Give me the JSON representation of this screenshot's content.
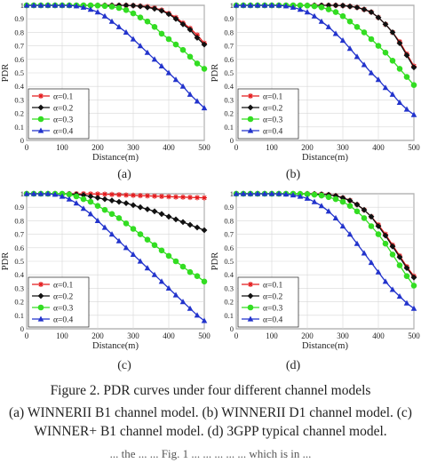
{
  "figure_caption": "Figure 2. PDR curves under four different channel models",
  "caption_lines": [
    "(a) WINNERII B1 channel model. (b) WINNERII D1 channel model. (c)",
    "WINNER+ B1 channel model. (d) 3GPP typical channel model."
  ],
  "partial_text": "... the ... ... Fig. 1 ... ... ... ... ... which is in ...",
  "colors": {
    "a1": "#e41a1c",
    "a2": "#111111",
    "a3": "#33dd22",
    "a4": "#2233cc"
  },
  "chart_data": [
    {
      "type": "line",
      "panel_label": "(a)",
      "xlabel": "Distance(m)",
      "ylabel": "PDR",
      "xlim": [
        0,
        500
      ],
      "ylim": [
        0,
        1
      ],
      "xticks": [
        "0",
        "100",
        "200",
        "300",
        "400",
        "500"
      ],
      "yticks": [
        "0",
        "0.1",
        "0.2",
        "0.3",
        "0.4",
        "0.5",
        "0.6",
        "0.7",
        "0.8",
        "0.9",
        "1"
      ],
      "grid": true,
      "legend_position": "bottom-left",
      "x": [
        0,
        20,
        40,
        60,
        80,
        100,
        120,
        140,
        160,
        180,
        200,
        220,
        240,
        260,
        280,
        300,
        320,
        340,
        360,
        380,
        400,
        420,
        440,
        460,
        480,
        500
      ],
      "series": [
        {
          "name": "α=0.1",
          "marker": "star",
          "color_key": "a1",
          "values": [
            1,
            1,
            1,
            1,
            1,
            1,
            1,
            1,
            1,
            1,
            1,
            1,
            1,
            1,
            1,
            0.999,
            0.995,
            0.99,
            0.98,
            0.965,
            0.94,
            0.91,
            0.87,
            0.83,
            0.78,
            0.72
          ]
        },
        {
          "name": "α=0.2",
          "marker": "diamond",
          "color_key": "a2",
          "values": [
            1,
            1,
            1,
            1,
            1,
            1,
            1,
            1,
            1,
            1,
            1,
            1,
            1,
            1,
            1,
            0.998,
            0.993,
            0.985,
            0.975,
            0.96,
            0.935,
            0.9,
            0.86,
            0.82,
            0.76,
            0.71
          ]
        },
        {
          "name": "α=0.3",
          "marker": "circle",
          "color_key": "a3",
          "values": [
            1,
            1,
            1,
            1,
            1,
            1,
            1,
            1,
            1,
            1,
            0.998,
            0.995,
            0.99,
            0.98,
            0.965,
            0.94,
            0.91,
            0.88,
            0.84,
            0.79,
            0.75,
            0.71,
            0.67,
            0.62,
            0.57,
            0.53
          ]
        },
        {
          "name": "α=0.4",
          "marker": "triangle",
          "color_key": "a4",
          "values": [
            1,
            1,
            1,
            1,
            1,
            1,
            1,
            0.995,
            0.985,
            0.97,
            0.95,
            0.92,
            0.88,
            0.84,
            0.8,
            0.75,
            0.7,
            0.65,
            0.6,
            0.55,
            0.5,
            0.45,
            0.4,
            0.34,
            0.29,
            0.24
          ]
        }
      ]
    },
    {
      "type": "line",
      "panel_label": "(b)",
      "xlabel": "Distance(m)",
      "ylabel": "PDR",
      "xlim": [
        0,
        500
      ],
      "ylim": [
        0,
        1
      ],
      "xticks": [
        "0",
        "100",
        "200",
        "300",
        "400",
        "500"
      ],
      "yticks": [
        "0",
        "0.1",
        "0.2",
        "0.3",
        "0.4",
        "0.5",
        "0.6",
        "0.7",
        "0.8",
        "0.9",
        "1"
      ],
      "grid": true,
      "legend_position": "bottom-left",
      "x": [
        0,
        20,
        40,
        60,
        80,
        100,
        120,
        140,
        160,
        180,
        200,
        220,
        240,
        260,
        280,
        300,
        320,
        340,
        360,
        380,
        400,
        420,
        440,
        460,
        480,
        500
      ],
      "series": [
        {
          "name": "α=0.1",
          "marker": "star",
          "color_key": "a1",
          "values": [
            1,
            1,
            1,
            1,
            1,
            1,
            1,
            1,
            1,
            1,
            1,
            1,
            1,
            1,
            1,
            0.998,
            0.993,
            0.985,
            0.97,
            0.95,
            0.91,
            0.86,
            0.8,
            0.73,
            0.64,
            0.55
          ]
        },
        {
          "name": "α=0.2",
          "marker": "diamond",
          "color_key": "a2",
          "values": [
            1,
            1,
            1,
            1,
            1,
            1,
            1,
            1,
            1,
            1,
            1,
            1,
            1,
            1,
            1,
            0.998,
            0.992,
            0.984,
            0.97,
            0.95,
            0.91,
            0.86,
            0.8,
            0.72,
            0.63,
            0.54
          ]
        },
        {
          "name": "α=0.3",
          "marker": "circle",
          "color_key": "a3",
          "values": [
            1,
            1,
            1,
            1,
            1,
            1,
            1,
            1,
            1,
            1,
            0.998,
            0.993,
            0.985,
            0.97,
            0.95,
            0.92,
            0.88,
            0.84,
            0.8,
            0.75,
            0.7,
            0.65,
            0.59,
            0.53,
            0.47,
            0.41
          ]
        },
        {
          "name": "α=0.4",
          "marker": "triangle",
          "color_key": "a4",
          "values": [
            1,
            1,
            1,
            1,
            1,
            1,
            1,
            0.995,
            0.985,
            0.97,
            0.95,
            0.92,
            0.88,
            0.84,
            0.79,
            0.74,
            0.68,
            0.62,
            0.56,
            0.5,
            0.45,
            0.39,
            0.34,
            0.28,
            0.23,
            0.19
          ]
        }
      ]
    },
    {
      "type": "line",
      "panel_label": "(c)",
      "xlabel": "Distance(m)",
      "ylabel": "PDR",
      "xlim": [
        0,
        500
      ],
      "ylim": [
        0,
        1
      ],
      "xticks": [
        "0",
        "100",
        "200",
        "300",
        "400",
        "500"
      ],
      "yticks": [
        "0",
        "0.1",
        "0.2",
        "0.3",
        "0.4",
        "0.5",
        "0.6",
        "0.7",
        "0.8",
        "0.9",
        "1"
      ],
      "grid": true,
      "legend_position": "bottom-left",
      "x": [
        0,
        20,
        40,
        60,
        80,
        100,
        120,
        140,
        160,
        180,
        200,
        220,
        240,
        260,
        280,
        300,
        320,
        340,
        360,
        380,
        400,
        420,
        440,
        460,
        480,
        500
      ],
      "series": [
        {
          "name": "α=0.1",
          "marker": "star",
          "color_key": "a1",
          "values": [
            1,
            1,
            1,
            1,
            1,
            1,
            1,
            1,
            1,
            0.999,
            0.998,
            0.997,
            0.995,
            0.993,
            0.99,
            0.988,
            0.986,
            0.984,
            0.982,
            0.98,
            0.978,
            0.976,
            0.975,
            0.973,
            0.971,
            0.97
          ]
        },
        {
          "name": "α=0.2",
          "marker": "diamond",
          "color_key": "a2",
          "values": [
            1,
            1,
            1,
            1,
            1,
            1,
            0.999,
            0.995,
            0.99,
            0.98,
            0.97,
            0.96,
            0.95,
            0.94,
            0.93,
            0.915,
            0.9,
            0.885,
            0.87,
            0.85,
            0.83,
            0.81,
            0.79,
            0.77,
            0.75,
            0.73
          ]
        },
        {
          "name": "α=0.3",
          "marker": "circle",
          "color_key": "a3",
          "values": [
            1,
            1,
            1,
            1,
            1,
            1,
            0.995,
            0.98,
            0.96,
            0.94,
            0.91,
            0.88,
            0.85,
            0.82,
            0.78,
            0.74,
            0.7,
            0.66,
            0.62,
            0.58,
            0.54,
            0.5,
            0.46,
            0.42,
            0.39,
            0.35
          ]
        },
        {
          "name": "α=0.4",
          "marker": "triangle",
          "color_key": "a4",
          "values": [
            1,
            1,
            1,
            1,
            0.995,
            0.98,
            0.96,
            0.93,
            0.89,
            0.85,
            0.8,
            0.75,
            0.7,
            0.65,
            0.6,
            0.55,
            0.5,
            0.45,
            0.4,
            0.35,
            0.3,
            0.25,
            0.2,
            0.15,
            0.1,
            0.06
          ]
        }
      ]
    },
    {
      "type": "line",
      "panel_label": "(d)",
      "xlabel": "Distance(m)",
      "ylabel": "PDR",
      "xlim": [
        0,
        500
      ],
      "ylim": [
        0,
        1
      ],
      "xticks": [
        "0",
        "100",
        "200",
        "300",
        "400",
        "500"
      ],
      "yticks": [
        "0",
        "0.1",
        "0.2",
        "0.3",
        "0.4",
        "0.5",
        "0.6",
        "0.7",
        "0.8",
        "0.9",
        "1"
      ],
      "grid": true,
      "legend_position": "bottom-left",
      "x": [
        0,
        20,
        40,
        60,
        80,
        100,
        120,
        140,
        160,
        180,
        200,
        220,
        240,
        260,
        280,
        300,
        320,
        340,
        360,
        380,
        400,
        420,
        440,
        460,
        480,
        500
      ],
      "series": [
        {
          "name": "α=0.1",
          "marker": "star",
          "color_key": "a1",
          "values": [
            1,
            1,
            1,
            1,
            1,
            1,
            1,
            1,
            1,
            1,
            1,
            0.999,
            0.997,
            0.993,
            0.985,
            0.97,
            0.95,
            0.92,
            0.88,
            0.83,
            0.77,
            0.7,
            0.62,
            0.54,
            0.46,
            0.39
          ]
        },
        {
          "name": "α=0.2",
          "marker": "diamond",
          "color_key": "a2",
          "values": [
            1,
            1,
            1,
            1,
            1,
            1,
            1,
            1,
            1,
            1,
            1,
            0.999,
            0.996,
            0.992,
            0.984,
            0.97,
            0.95,
            0.92,
            0.88,
            0.83,
            0.76,
            0.69,
            0.61,
            0.53,
            0.45,
            0.38
          ]
        },
        {
          "name": "α=0.3",
          "marker": "circle",
          "color_key": "a3",
          "values": [
            1,
            1,
            1,
            1,
            1,
            1,
            1,
            1,
            1,
            0.999,
            0.997,
            0.993,
            0.986,
            0.975,
            0.96,
            0.94,
            0.91,
            0.87,
            0.82,
            0.76,
            0.7,
            0.63,
            0.55,
            0.47,
            0.39,
            0.32
          ]
        },
        {
          "name": "α=0.4",
          "marker": "triangle",
          "color_key": "a4",
          "values": [
            1,
            1,
            1,
            1,
            1,
            1,
            1,
            0.997,
            0.99,
            0.98,
            0.965,
            0.94,
            0.91,
            0.87,
            0.82,
            0.76,
            0.7,
            0.63,
            0.56,
            0.49,
            0.42,
            0.35,
            0.29,
            0.24,
            0.19,
            0.15
          ]
        }
      ]
    }
  ]
}
